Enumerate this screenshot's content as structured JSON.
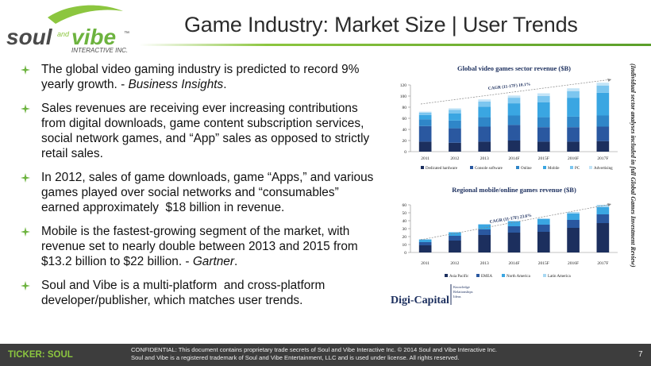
{
  "logo": {
    "word1": "soul",
    "word2": "and",
    "word3": "vibe",
    "tm": "™",
    "tagline": "INTERACTIVE INC."
  },
  "header": {
    "title": "Game Industry: Market Size | User Trends"
  },
  "bullets": [
    [
      {
        "text": "The global video gaming industry is predicted to record 9% yearly growth. - "
      },
      {
        "text": "Business Insights",
        "italic": true
      },
      {
        "text": "."
      }
    ],
    [
      {
        "text": "Sales revenues are receiving ever increasing contributions from digital downloads, game content subscription services, social network games, and “App” sales as opposed to strictly retail sales."
      }
    ],
    [
      {
        "text": "In 2012, sales of game downloads, game “Apps,” and various games played over social networks and “consumables” earned approximately  $18 billion in revenue."
      }
    ],
    [
      {
        "text": "Mobile is the fastest-growing segment of the market, with revenue set to nearly double between 2013 and 2015 from $13.2 billion to $22 billion. - "
      },
      {
        "text": "Gartner",
        "italic": true
      },
      {
        "text": "."
      }
    ],
    [
      {
        "text": "Soul and Vibe is a multi-platform  and cross-platform developer/publisher, which matches user trends."
      }
    ]
  ],
  "charts": [
    {
      "type": "bar",
      "stacked": true,
      "title": "Global video games sector revenue ($B)",
      "categories": [
        "2011",
        "2012",
        "2013",
        "2014F",
        "2015F",
        "2016F",
        "2017F"
      ],
      "series": [
        {
          "name": "Dedicated hardware",
          "color": "#1c2f5e",
          "values": [
            18,
            16,
            18,
            20,
            18,
            18,
            19
          ]
        },
        {
          "name": "Console software",
          "color": "#2a58a0",
          "values": [
            28,
            26,
            27,
            28,
            26,
            26,
            26
          ]
        },
        {
          "name": "Online",
          "color": "#2f86c8",
          "values": [
            12,
            14,
            17,
            17,
            18,
            19,
            20
          ]
        },
        {
          "name": "Mobile",
          "color": "#3aa6e2",
          "values": [
            8,
            13,
            19,
            22,
            27,
            34,
            41
          ]
        },
        {
          "name": "PC",
          "color": "#7cc6ef",
          "values": [
            4,
            6,
            9,
            10,
            11,
            12,
            13
          ]
        },
        {
          "name": "Advertising",
          "color": "#c3e4f7",
          "values": [
            2,
            3,
            4,
            4,
            5,
            5,
            5
          ]
        }
      ],
      "ylim": [
        0,
        120
      ],
      "yticks": [
        0,
        20,
        40,
        60,
        80,
        100,
        120
      ],
      "annotation": "CAGR (11-17F) 10.1%"
    },
    {
      "type": "bar",
      "stacked": true,
      "title": "Regional mobile/online games revenue ($B)",
      "categories": [
        "2011",
        "2012",
        "2013",
        "2014F",
        "2015F",
        "2016F",
        "2017F"
      ],
      "series": [
        {
          "name": "Asia Pacific",
          "color": "#1c2f5e",
          "values": [
            9,
            15,
            22,
            25,
            26,
            31,
            37
          ]
        },
        {
          "name": "EMEA",
          "color": "#2a58a0",
          "values": [
            4,
            6,
            7,
            8,
            9,
            10,
            11
          ]
        },
        {
          "name": "North America",
          "color": "#3aa6e2",
          "values": [
            3,
            4,
            6,
            6,
            7,
            8,
            9
          ]
        },
        {
          "name": "Latin America",
          "color": "#a9d8f2",
          "values": [
            1,
            1,
            1,
            1,
            1,
            2,
            3
          ]
        }
      ],
      "ylim": [
        0,
        60
      ],
      "yticks": [
        0,
        10,
        20,
        30,
        40,
        50,
        60
      ],
      "annotation": "CAGR (11-17F) 23.6%"
    }
  ],
  "side_note": "(Individual sector analyses included in full Global Games Investment Review)",
  "source": {
    "name": "Digi-Capital",
    "tagline1": "Knowledge",
    "tagline2": "Relationships",
    "tagline3": "Ideas"
  },
  "footer": {
    "ticker": "TICKER:  SOUL",
    "line1": "CONFIDENTIAL: This document contains proprietary trade secrets of Soul and Vibe Interactive Inc. © 2014 Soul and Vibe Interactive Inc.",
    "line2": "Soul and Vibe is a registered trademark of Soul and Vibe Entertainment,  LLC and is used under license. All rights reserved.",
    "page": "7"
  }
}
